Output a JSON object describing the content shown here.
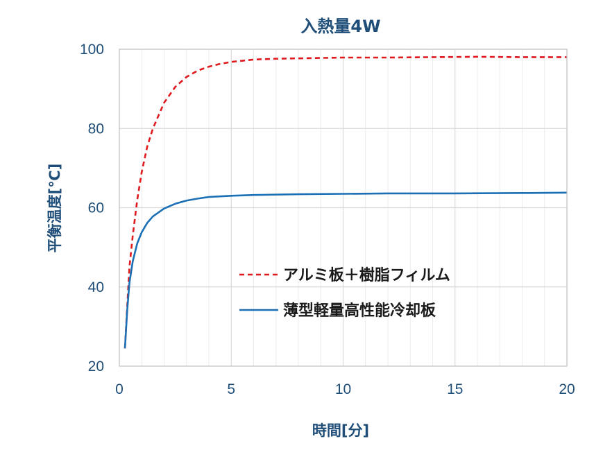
{
  "chart_data": {
    "type": "line",
    "title": "入熱量4W",
    "xlabel": "時間[分]",
    "ylabel": "平衡温度[℃]",
    "xlim": [
      0,
      20
    ],
    "ylim": [
      20,
      100
    ],
    "xticks": [
      0,
      5,
      10,
      15,
      20
    ],
    "yticks": [
      20,
      40,
      60,
      80,
      100
    ],
    "grid": true,
    "legend_position": "center-right",
    "series": [
      {
        "name": "アルミ板＋樹脂フィルム",
        "color": "#e0191e",
        "style": "dashed",
        "points": [
          [
            0.25,
            24.5
          ],
          [
            0.35,
            35
          ],
          [
            0.45,
            45
          ],
          [
            0.6,
            53
          ],
          [
            0.8,
            62
          ],
          [
            1.0,
            69
          ],
          [
            1.25,
            75.5
          ],
          [
            1.5,
            80
          ],
          [
            2.0,
            86.5
          ],
          [
            2.5,
            90.5
          ],
          [
            3.0,
            93
          ],
          [
            3.5,
            94.6
          ],
          [
            4.0,
            95.6
          ],
          [
            4.5,
            96.3
          ],
          [
            5.0,
            96.8
          ],
          [
            6.0,
            97.4
          ],
          [
            7.0,
            97.6
          ],
          [
            8.0,
            97.7
          ],
          [
            10.0,
            97.9
          ],
          [
            12.0,
            97.9
          ],
          [
            14.0,
            98.0
          ],
          [
            16.0,
            98.1
          ],
          [
            18.0,
            98.0
          ],
          [
            20.0,
            98.0
          ]
        ]
      },
      {
        "name": "薄型軽量高性能冷却板",
        "color": "#1a6fb5",
        "style": "solid",
        "points": [
          [
            0.25,
            24.5
          ],
          [
            0.35,
            34
          ],
          [
            0.45,
            41
          ],
          [
            0.6,
            46.5
          ],
          [
            0.8,
            51
          ],
          [
            1.0,
            53.8
          ],
          [
            1.25,
            56.2
          ],
          [
            1.5,
            57.8
          ],
          [
            2.0,
            59.8
          ],
          [
            2.5,
            61.0
          ],
          [
            3.0,
            61.8
          ],
          [
            3.5,
            62.3
          ],
          [
            4.0,
            62.7
          ],
          [
            5.0,
            63.0
          ],
          [
            6.0,
            63.2
          ],
          [
            8.0,
            63.4
          ],
          [
            10.0,
            63.5
          ],
          [
            12.0,
            63.6
          ],
          [
            15.0,
            63.6
          ],
          [
            18.0,
            63.7
          ],
          [
            20.0,
            63.8
          ]
        ]
      }
    ]
  },
  "colors": {
    "text": "#1f4e79",
    "grid": "#d9d9d9",
    "plot_border": "#bfbfbf"
  }
}
